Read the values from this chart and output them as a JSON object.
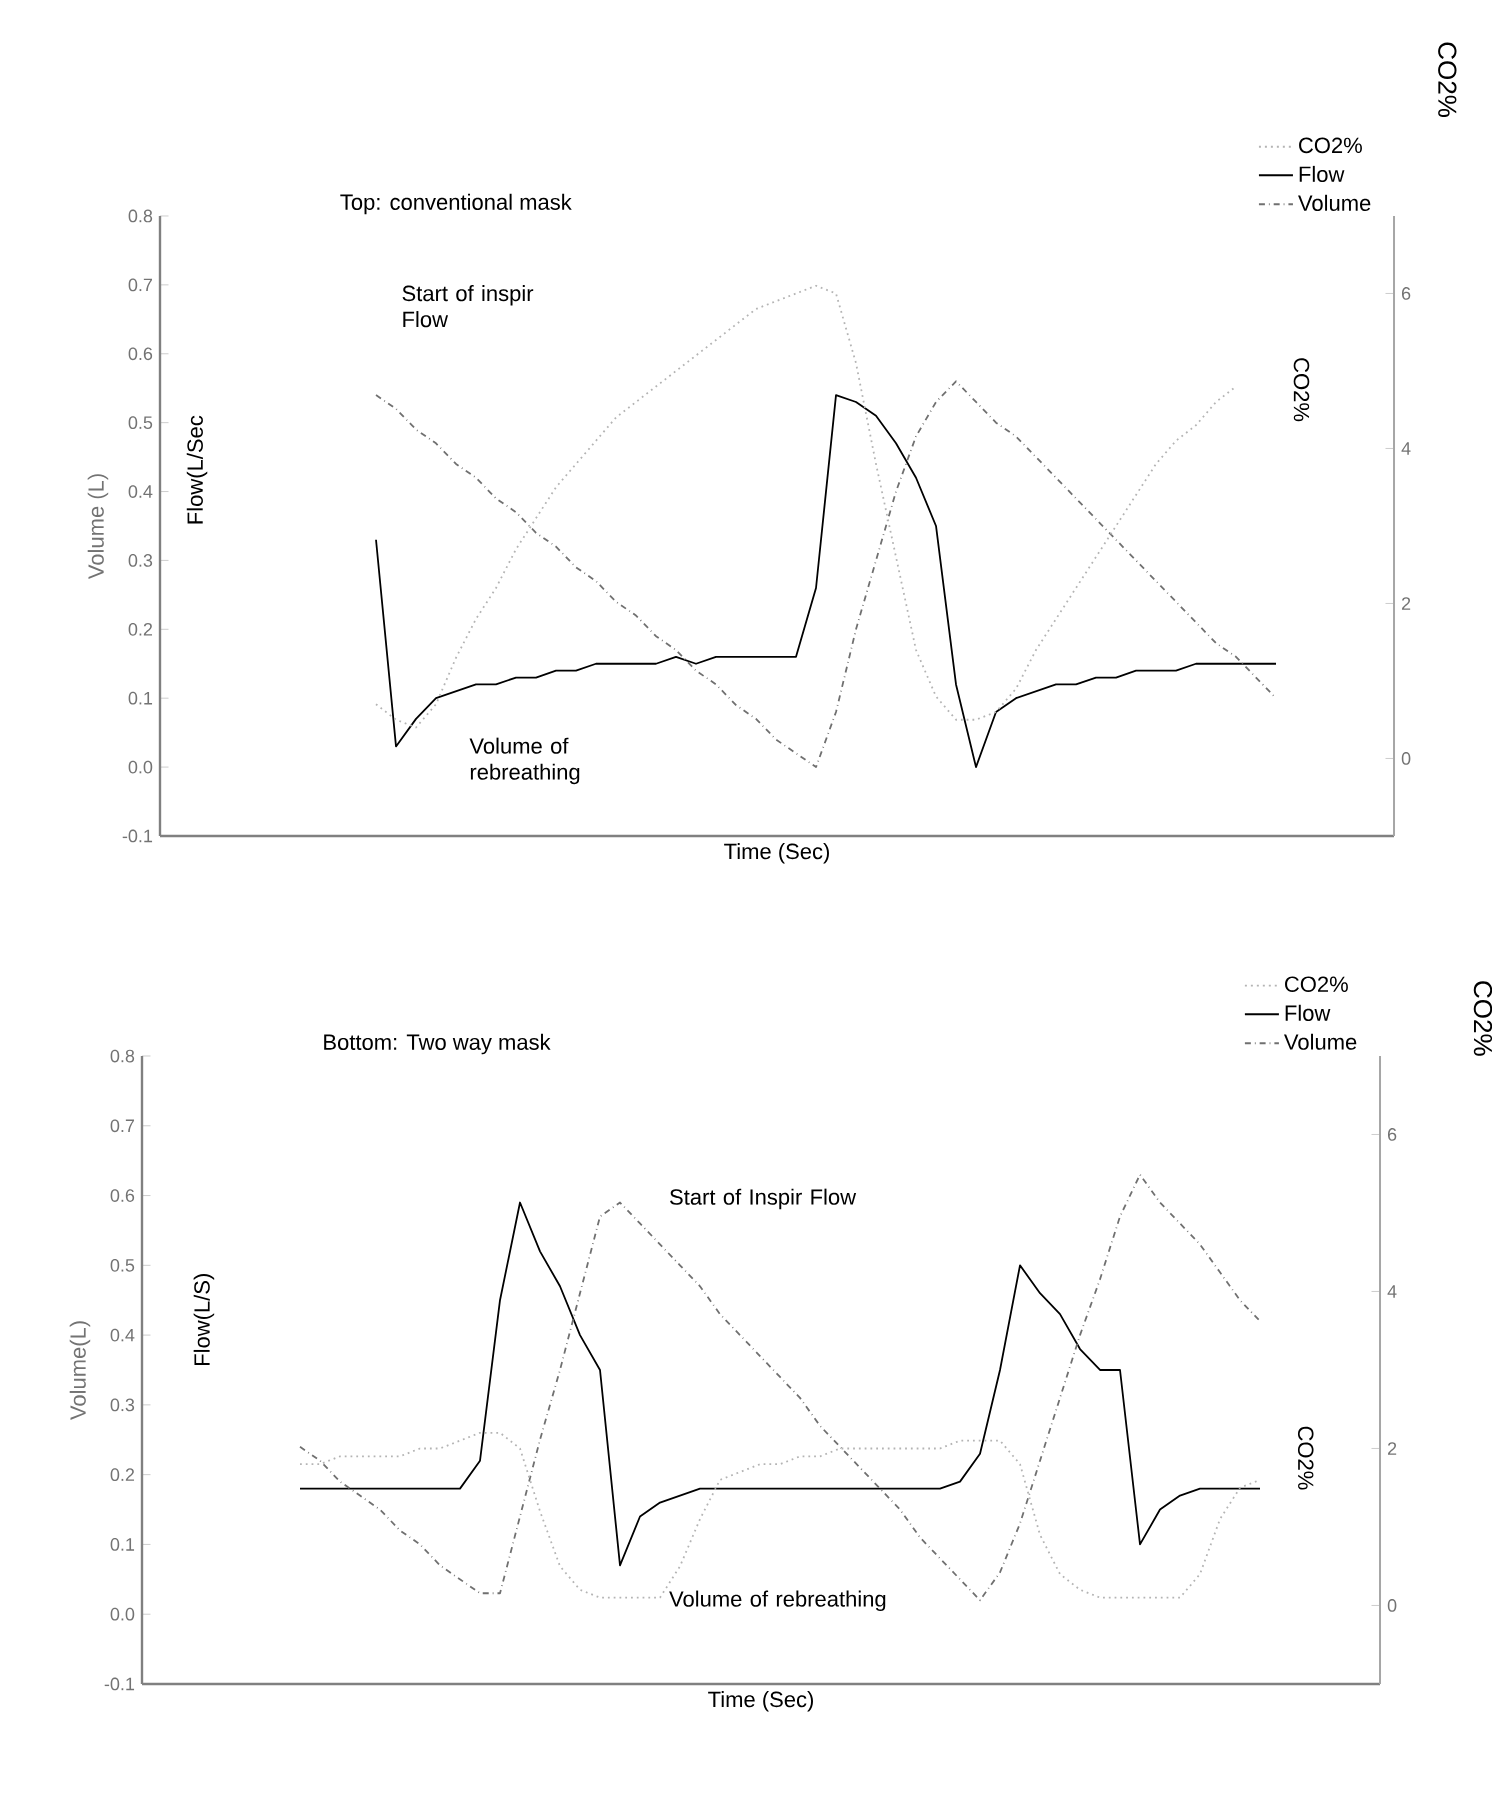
{
  "chart_data": [
    {
      "type": "line",
      "title": "Top: conventional mask",
      "xlabel": "Time (Sec)",
      "ylabel": "Volume (L)",
      "y2label": "CO2%",
      "annotations": [
        "Flow(L/Sec",
        "CO2%",
        "Start of inspir Flow",
        "Volume of rebreathing"
      ],
      "categories": [
        null,
        null,
        null,
        null,
        null,
        null,
        null,
        null,
        null,
        null,
        null,
        null,
        null,
        null,
        null,
        null,
        null,
        null,
        null,
        null,
        null,
        null,
        null,
        null,
        null,
        null,
        null,
        null,
        null,
        null,
        null,
        null,
        null,
        null,
        null,
        null,
        null,
        null,
        null,
        null,
        null,
        null,
        null,
        null,
        null,
        null,
        null,
        null,
        null,
        null,
        null,
        null,
        null,
        null,
        null,
        null,
        null,
        null,
        null,
        null
      ],
      "series": [
        {
          "name": "CO2%",
          "color": "#b4b4b4",
          "line_style": "dotted",
          "axis": "y2",
          "values": [
            null,
            null,
            null,
            null,
            null,
            null,
            null,
            null,
            0.7,
            0.5,
            0.4,
            0.7,
            1.3,
            1.8,
            2.2,
            2.7,
            3.1,
            3.5,
            3.8,
            4.1,
            4.4,
            4.6,
            4.8,
            5.0,
            5.2,
            5.4,
            5.6,
            5.8,
            5.9,
            6.0,
            6.1,
            6.0,
            5.1,
            3.8,
            2.6,
            1.4,
            0.8,
            0.5,
            0.5,
            0.6,
            0.9,
            1.4,
            1.8,
            2.2,
            2.6,
            3.0,
            3.4,
            3.8,
            4.1,
            4.3,
            4.6,
            4.8,
            null,
            null,
            null,
            null,
            null,
            null,
            null,
            null
          ]
        },
        {
          "name": "Flow",
          "color": "#000000",
          "line_style": "solid",
          "values": [
            null,
            null,
            null,
            null,
            null,
            null,
            null,
            null,
            0.33,
            0.03,
            0.07,
            0.1,
            0.11,
            0.12,
            0.12,
            0.13,
            0.13,
            0.14,
            0.14,
            0.15,
            0.15,
            0.15,
            0.15,
            0.16,
            0.15,
            0.16,
            0.16,
            0.16,
            0.16,
            0.16,
            0.26,
            0.54,
            0.53,
            0.51,
            0.47,
            0.42,
            0.35,
            0.12,
            0.0,
            0.08,
            0.1,
            0.11,
            0.12,
            0.12,
            0.13,
            0.13,
            0.14,
            0.14,
            0.14,
            0.15,
            0.15,
            0.15,
            0.15,
            0.15,
            null,
            null,
            null,
            null,
            null,
            null
          ]
        },
        {
          "name": "Volume",
          "color": "#707070",
          "line_style": "dashdot",
          "values": [
            null,
            null,
            null,
            null,
            null,
            null,
            null,
            null,
            0.54,
            0.52,
            0.49,
            0.47,
            0.44,
            0.42,
            0.39,
            0.37,
            0.34,
            0.32,
            0.29,
            0.27,
            0.24,
            0.22,
            0.19,
            0.17,
            0.14,
            0.12,
            0.09,
            0.07,
            0.04,
            0.02,
            0.0,
            0.08,
            0.2,
            0.3,
            0.4,
            0.48,
            0.53,
            0.56,
            0.53,
            0.5,
            0.48,
            0.45,
            0.42,
            0.39,
            0.36,
            0.33,
            0.3,
            0.27,
            0.24,
            0.21,
            0.18,
            0.16,
            0.13,
            0.1,
            null,
            null,
            null,
            null,
            null,
            null
          ]
        }
      ],
      "ylim": [
        -0.1,
        0.8
      ],
      "yticks": [
        -0.1,
        {
          "value": 0,
          "label": "0.0"
        },
        0.1,
        0.2,
        0.3,
        0.4,
        0.5,
        0.6,
        0.7,
        0.8
      ],
      "y2lim": [
        -1,
        7
      ],
      "y2ticks": [
        0,
        2,
        4,
        6
      ],
      "legend": "top right",
      "tick_labels": "y"
    },
    {
      "type": "line",
      "title": "Bottom: Two way mask",
      "xlabel": "Time (Sec)",
      "ylabel": "Volume(L)",
      "y2label": "CO2%",
      "annotations": [
        "Flow(L/S)",
        "CO2%",
        "Start of Inspir Flow",
        "Volume of rebreathing"
      ],
      "categories": [
        null,
        null,
        null,
        null,
        null,
        null,
        null,
        null,
        null,
        null,
        null,
        null,
        null,
        null,
        null,
        null,
        null,
        null,
        null,
        null,
        null,
        null,
        null,
        null,
        null,
        null,
        null,
        null,
        null,
        null,
        null,
        null,
        null,
        null,
        null,
        null,
        null,
        null,
        null,
        null,
        null,
        null,
        null,
        null,
        null,
        null,
        null,
        null,
        null,
        null,
        null,
        null,
        null,
        null,
        null,
        null,
        null,
        null,
        null,
        null
      ],
      "series": [
        {
          "name": "CO2%",
          "color": "#b4b4b4",
          "line_style": "dotted",
          "axis": "y2",
          "values": [
            null,
            null,
            null,
            null,
            null,
            1.8,
            1.8,
            1.9,
            1.9,
            1.9,
            1.9,
            2.0,
            2.0,
            2.1,
            2.2,
            2.2,
            2.0,
            1.2,
            0.5,
            0.2,
            0.1,
            0.1,
            0.1,
            0.1,
            0.5,
            1.1,
            1.6,
            1.7,
            1.8,
            1.8,
            1.9,
            1.9,
            2.0,
            2.0,
            2.0,
            2.0,
            2.0,
            2.0,
            2.1,
            2.1,
            2.1,
            1.8,
            0.9,
            0.4,
            0.2,
            0.1,
            0.1,
            0.1,
            0.1,
            0.1,
            0.4,
            1.1,
            1.5,
            1.6,
            null,
            null,
            null,
            null,
            null,
            null
          ]
        },
        {
          "name": "Flow",
          "color": "#000000",
          "line_style": "solid",
          "values": [
            null,
            null,
            null,
            null,
            null,
            0.18,
            0.18,
            0.18,
            0.18,
            0.18,
            0.18,
            0.18,
            0.18,
            0.18,
            0.22,
            0.45,
            0.59,
            0.52,
            0.47,
            0.4,
            0.35,
            0.07,
            0.14,
            0.16,
            0.17,
            0.18,
            0.18,
            0.18,
            0.18,
            0.18,
            0.18,
            0.18,
            0.18,
            0.18,
            0.18,
            0.18,
            0.18,
            0.18,
            0.19,
            0.23,
            0.35,
            0.5,
            0.46,
            0.43,
            0.38,
            0.35,
            0.35,
            0.1,
            0.15,
            0.17,
            0.18,
            0.18,
            0.18,
            0.18,
            null,
            null,
            null,
            null,
            null,
            null
          ]
        },
        {
          "name": "Volume",
          "color": "#707070",
          "line_style": "dashdot",
          "values": [
            null,
            null,
            null,
            null,
            null,
            0.24,
            0.22,
            0.19,
            0.17,
            0.15,
            0.12,
            0.1,
            0.07,
            0.05,
            0.03,
            0.03,
            0.14,
            0.25,
            0.35,
            0.46,
            0.57,
            0.59,
            0.56,
            0.53,
            0.5,
            0.47,
            0.43,
            0.4,
            0.37,
            0.34,
            0.31,
            0.27,
            0.24,
            0.21,
            0.18,
            0.15,
            0.11,
            0.08,
            0.05,
            0.02,
            0.06,
            0.13,
            0.22,
            0.31,
            0.4,
            0.48,
            0.57,
            0.63,
            0.59,
            0.56,
            0.53,
            0.49,
            0.45,
            0.42,
            null,
            null,
            null,
            null,
            null,
            null
          ]
        }
      ],
      "ylim": [
        -0.1,
        0.8
      ],
      "yticks": [
        -0.1,
        {
          "value": 0,
          "label": "0.0"
        },
        0.1,
        0.2,
        0.3,
        0.4,
        0.5,
        0.6,
        0.7,
        0.8
      ],
      "y2lim": [
        -1,
        7
      ],
      "y2ticks": [
        0,
        2,
        4,
        6
      ],
      "legend": "top right",
      "tick_labels": "y"
    }
  ]
}
